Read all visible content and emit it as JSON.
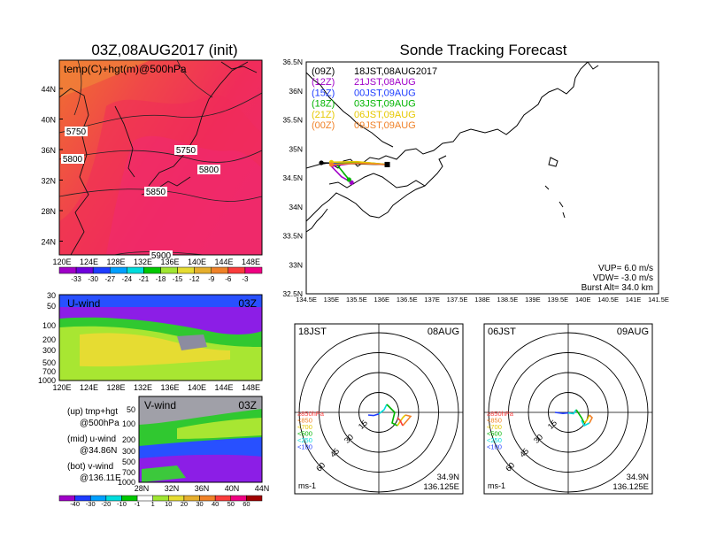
{
  "titles": {
    "left": "03Z,08AUG2017 (init)",
    "right": "Sonde Tracking Forecast"
  },
  "temp_map": {
    "overlay_label": "temp(C)+hgt(m)@500hPa",
    "lat_labels": [
      "44N",
      "40N",
      "36N",
      "32N",
      "28N",
      "24N"
    ],
    "lon_labels": [
      "120E",
      "124E",
      "128E",
      "132E",
      "136E",
      "140E",
      "144E",
      "148E"
    ],
    "contour_labels": [
      "5750",
      "5750",
      "5800",
      "5800",
      "5850",
      "5900"
    ],
    "colorbar_labels": [
      "-33",
      "-30",
      "-27",
      "-24",
      "-21",
      "-18",
      "-15",
      "-12",
      "-9",
      "-6",
      "-3"
    ],
    "colorbar_colors": [
      "#a000c8",
      "#6e00dc",
      "#1e3cff",
      "#00a0ff",
      "#00dcdc",
      "#00c800",
      "#a0e632",
      "#e6dc32",
      "#e6af2d",
      "#f08228",
      "#fa3c3c",
      "#f00082"
    ]
  },
  "u_wind": {
    "label": "U-wind",
    "time": "03Z",
    "y_labels": [
      "30",
      "50",
      "100",
      "200",
      "300",
      "500",
      "700",
      "1000"
    ],
    "x_labels": [
      "120E",
      "124E",
      "128E",
      "132E",
      "136E",
      "140E",
      "144E",
      "148E"
    ]
  },
  "v_wind": {
    "label": "V-wind",
    "time": "03Z",
    "y_labels": [
      "50",
      "100",
      "200",
      "300",
      "500",
      "700",
      "1000"
    ],
    "x_labels": [
      "28N",
      "32N",
      "36N",
      "40N",
      "44N"
    ]
  },
  "notes": [
    {
      "line1": "(up) tmp+hgt",
      "line2": "@500hPa"
    },
    {
      "line1": "(mid) u-wind",
      "line2": "@34.86N"
    },
    {
      "line1": "(bot) v-wind",
      "line2": "@136.11E"
    }
  ],
  "wind_colorbar": {
    "labels": [
      "-40",
      "-30",
      "-20",
      "-10",
      "-1",
      "1",
      "10",
      "20",
      "30",
      "40",
      "50",
      "60"
    ],
    "colors": [
      "#a000c8",
      "#1e3cff",
      "#00a0ff",
      "#00dcdc",
      "#00c800",
      "#ffffff",
      "#a0e632",
      "#e6dc32",
      "#e6af2d",
      "#f08228",
      "#fa3c3c",
      "#f00082",
      "#a00000"
    ]
  },
  "track_map": {
    "legend": [
      {
        "code": "(09Z)",
        "text": "18JST,08AUG2017",
        "color": "#000000"
      },
      {
        "code": "(12Z)",
        "text": "21JST,08AUG",
        "color": "#a000c8"
      },
      {
        "code": "(15Z)",
        "text": "00JST,09AUG",
        "color": "#1e3cff"
      },
      {
        "code": "(18Z)",
        "text": "03JST,09AUG",
        "color": "#00b400"
      },
      {
        "code": "(21Z)",
        "text": "06JST,09AUG",
        "color": "#e6c800"
      },
      {
        "code": "(00Z)",
        "text": "09JST,09AUG",
        "color": "#f08228"
      }
    ],
    "params": [
      "VUP=  6.0 m/s",
      "VDW= -3.0 m/s",
      "Burst Alt= 34.0 km"
    ],
    "lat_labels": [
      "36.5N",
      "36N",
      "35.5N",
      "35N",
      "34.5N",
      "34N",
      "33.5N",
      "33N",
      "32.5N"
    ],
    "lon_labels": [
      "134.5E",
      "135E",
      "135.5E",
      "136E",
      "136.5E",
      "137E",
      "137.5E",
      "138E",
      "138.5E",
      "139E",
      "139.5E",
      "140E",
      "140.5E",
      "141E",
      "141.5E"
    ],
    "launch_lon": 136.11,
    "launch_lat": 34.73
  },
  "chart_data": [
    {
      "type": "line",
      "title": "Sonde Tracking Forecast",
      "xlim": [
        134.5,
        141.5
      ],
      "ylim": [
        32.5,
        36.5
      ],
      "series": [
        {
          "name": "(09Z) 18JST,08AUG2017",
          "color": "#000000",
          "x": [
            136.11,
            135.7,
            135.2,
            134.8
          ],
          "y": [
            34.73,
            34.74,
            34.75,
            34.76
          ]
        },
        {
          "name": "(12Z) 21JST,08AUG",
          "color": "#a000c8",
          "x": [
            136.11,
            135.5,
            135.0,
            135.2,
            135.4
          ],
          "y": [
            34.73,
            34.76,
            34.7,
            34.52,
            34.42
          ]
        },
        {
          "name": "(15Z) 00JST,09AUG",
          "color": "#1e3cff",
          "x": [
            136.11,
            135.6,
            135.0
          ],
          "y": [
            34.73,
            34.76,
            34.75
          ]
        },
        {
          "name": "(18Z) 03JST,09AUG",
          "color": "#00b400",
          "x": [
            136.11,
            135.6,
            135.1,
            135.35
          ],
          "y": [
            34.73,
            34.77,
            34.74,
            34.47
          ]
        },
        {
          "name": "(21Z) 06JST,09AUG",
          "color": "#e6c800",
          "x": [
            136.11,
            135.5,
            135.0
          ],
          "y": [
            34.73,
            34.78,
            34.77
          ]
        },
        {
          "name": "(00Z) 09JST,09AUG",
          "color": "#f08228",
          "x": [
            136.11,
            135.5,
            135.0
          ],
          "y": [
            34.73,
            34.75,
            34.73
          ]
        }
      ]
    },
    {
      "type": "scatter",
      "title": "18JST 08AUG",
      "location": [
        "34.9N",
        "136.125E"
      ],
      "unit": "ms-1",
      "rings": [
        "15",
        "30",
        "45",
        "60"
      ],
      "levels": [
        "≥850hPa",
        "<850",
        "<700",
        "<500",
        "<250",
        "<100"
      ],
      "level_colors": [
        "#fa3c3c",
        "#f08228",
        "#e6c800",
        "#00b400",
        "#00dcdc",
        "#1e3cff"
      ],
      "hodograph": [
        {
          "color": "#1e3cff",
          "x": [
            -4,
            -2,
            0
          ],
          "y": [
            -1,
            -1.2,
            -0.6
          ]
        },
        {
          "color": "#00dcdc",
          "x": [
            0,
            2,
            3
          ],
          "y": [
            -0.6,
            1,
            3
          ]
        },
        {
          "color": "#00b400",
          "x": [
            3,
            6,
            5,
            7
          ],
          "y": [
            3,
            0,
            -4,
            -5
          ]
        },
        {
          "color": "#e6c800",
          "x": [
            7,
            9,
            10
          ],
          "y": [
            -5,
            -2,
            -1
          ]
        },
        {
          "color": "#f08228",
          "x": [
            10,
            12,
            9
          ],
          "y": [
            -1,
            -1.5,
            -5
          ]
        },
        {
          "color": "#fa3c3c",
          "x": [
            9,
            8,
            7
          ],
          "y": [
            -5,
            -3,
            -2
          ]
        }
      ]
    },
    {
      "type": "scatter",
      "title": "06JST 09AUG",
      "location": [
        "34.9N",
        "136.125E"
      ],
      "unit": "ms-1",
      "rings": [
        "15",
        "30",
        "45",
        "60"
      ],
      "levels": [
        "≥850hPa",
        "<850",
        "<700",
        "<500",
        "<250",
        "<100"
      ],
      "level_colors": [
        "#fa3c3c",
        "#f08228",
        "#e6c800",
        "#00b400",
        "#00dcdc",
        "#1e3cff"
      ],
      "hodograph": [
        {
          "color": "#1e3cff",
          "x": [
            -5,
            -2,
            0
          ],
          "y": [
            0,
            -0.4,
            -0.2
          ]
        },
        {
          "color": "#00dcdc",
          "x": [
            0,
            2,
            3
          ],
          "y": [
            -0.2,
            -0.5,
            1
          ]
        },
        {
          "color": "#00b400",
          "x": [
            3,
            5,
            6
          ],
          "y": [
            1,
            -2,
            -4
          ]
        },
        {
          "color": "#e6c800",
          "x": [
            6,
            7,
            8
          ],
          "y": [
            -4,
            -3,
            -1
          ]
        },
        {
          "color": "#f08228",
          "x": [
            8,
            9,
            8
          ],
          "y": [
            -1,
            -2,
            -4
          ]
        },
        {
          "color": "#00dcdc",
          "x": [
            8,
            6,
            5
          ],
          "y": [
            -4,
            -5,
            -3
          ]
        }
      ]
    }
  ]
}
